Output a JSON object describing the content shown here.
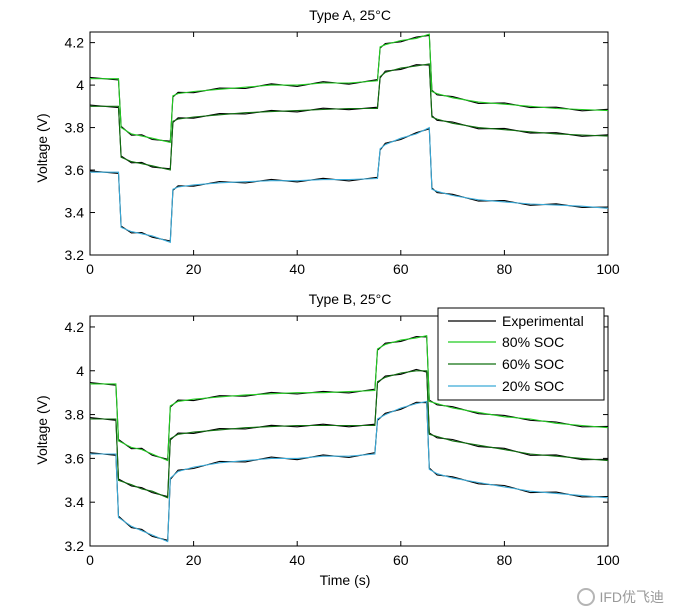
{
  "chart_data": [
    {
      "type": "line",
      "title": "Type A, 25°C",
      "xlabel": "",
      "ylabel": "Voltage (V)",
      "xlim": [
        0,
        100
      ],
      "ylim": [
        3.2,
        4.25
      ],
      "xticks": [
        "0",
        "20",
        "40",
        "60",
        "80",
        "100"
      ],
      "yticks": [
        "3.2",
        "3.4",
        "3.6",
        "3.8",
        "4",
        "4.2"
      ],
      "grid": false,
      "series": [
        {
          "name": "80% SOC",
          "color": "#22cc22",
          "x": [
            0,
            5.5,
            6,
            8,
            10,
            12,
            15.5,
            16,
            17,
            20,
            25,
            30,
            35,
            40,
            45,
            50,
            55.5,
            56,
            57,
            60,
            63,
            65.5,
            66,
            67,
            70,
            75,
            80,
            85,
            90,
            95,
            100
          ],
          "y": [
            4.03,
            4.03,
            3.8,
            3.77,
            3.76,
            3.75,
            3.73,
            3.95,
            3.96,
            3.97,
            3.98,
            3.99,
            4.0,
            4.0,
            4.01,
            4.01,
            4.02,
            4.18,
            4.19,
            4.21,
            4.22,
            4.24,
            3.97,
            3.96,
            3.94,
            3.92,
            3.91,
            3.9,
            3.89,
            3.885,
            3.88
          ]
        },
        {
          "name": "60% SOC",
          "color": "#107010",
          "x": [
            0,
            5.5,
            6,
            8,
            10,
            12,
            15.5,
            16,
            17,
            20,
            25,
            30,
            35,
            40,
            45,
            50,
            55.5,
            56,
            57,
            60,
            63,
            65.5,
            66,
            67,
            70,
            75,
            80,
            85,
            90,
            95,
            100
          ],
          "y": [
            3.9,
            3.9,
            3.66,
            3.64,
            3.63,
            3.62,
            3.6,
            3.83,
            3.84,
            3.85,
            3.86,
            3.87,
            3.875,
            3.88,
            3.885,
            3.89,
            3.89,
            4.04,
            4.06,
            4.08,
            4.09,
            4.1,
            3.85,
            3.84,
            3.82,
            3.8,
            3.79,
            3.78,
            3.77,
            3.765,
            3.76
          ]
        },
        {
          "name": "20% SOC",
          "color": "#3aaad8",
          "x": [
            0,
            5.5,
            6,
            8,
            10,
            12,
            15.5,
            16,
            17,
            20,
            25,
            30,
            35,
            40,
            45,
            50,
            55.5,
            56,
            57,
            60,
            63,
            65.5,
            66,
            67,
            70,
            75,
            80,
            85,
            90,
            95,
            100
          ],
          "y": [
            3.59,
            3.59,
            3.33,
            3.31,
            3.3,
            3.29,
            3.26,
            3.51,
            3.52,
            3.53,
            3.54,
            3.545,
            3.55,
            3.55,
            3.555,
            3.555,
            3.56,
            3.7,
            3.72,
            3.75,
            3.77,
            3.8,
            3.51,
            3.5,
            3.48,
            3.46,
            3.45,
            3.44,
            3.435,
            3.43,
            3.42
          ]
        }
      ]
    },
    {
      "type": "line",
      "title": "Type B, 25°C",
      "xlabel": "Time (s)",
      "ylabel": "Voltage (V)",
      "xlim": [
        0,
        100
      ],
      "ylim": [
        3.2,
        4.25
      ],
      "xticks": [
        "0",
        "20",
        "40",
        "60",
        "80",
        "100"
      ],
      "yticks": [
        "3.2",
        "3.4",
        "3.6",
        "3.8",
        "4",
        "4.2"
      ],
      "grid": false,
      "legend_position": "top-right",
      "legend": [
        "Experimental",
        "80% SOC",
        "60% SOC",
        "20% SOC"
      ],
      "series": [
        {
          "name": "80% SOC",
          "color": "#22cc22",
          "x": [
            0,
            5,
            5.5,
            8,
            10,
            12,
            15,
            15.5,
            17,
            20,
            25,
            30,
            35,
            40,
            45,
            50,
            55,
            55.5,
            57,
            60,
            63,
            65,
            65.5,
            67,
            70,
            75,
            80,
            85,
            90,
            95,
            100
          ],
          "y": [
            3.94,
            3.94,
            3.68,
            3.65,
            3.64,
            3.62,
            3.59,
            3.84,
            3.86,
            3.87,
            3.88,
            3.89,
            3.895,
            3.9,
            3.9,
            3.905,
            3.91,
            4.1,
            4.12,
            4.14,
            4.15,
            4.16,
            3.86,
            3.85,
            3.83,
            3.81,
            3.79,
            3.78,
            3.76,
            3.75,
            3.74
          ]
        },
        {
          "name": "60% SOC",
          "color": "#107010",
          "x": [
            0,
            5,
            5.5,
            8,
            10,
            12,
            15,
            15.5,
            17,
            20,
            25,
            30,
            35,
            40,
            45,
            50,
            55,
            55.5,
            57,
            60,
            63,
            65,
            65.5,
            67,
            70,
            75,
            80,
            85,
            90,
            95,
            100
          ],
          "y": [
            3.78,
            3.78,
            3.5,
            3.48,
            3.46,
            3.45,
            3.42,
            3.69,
            3.71,
            3.72,
            3.73,
            3.74,
            3.745,
            3.75,
            3.75,
            3.75,
            3.75,
            3.95,
            3.97,
            3.99,
            4.0,
            4.0,
            3.71,
            3.7,
            3.68,
            3.66,
            3.64,
            3.62,
            3.61,
            3.6,
            3.59
          ]
        },
        {
          "name": "20% SOC",
          "color": "#3aaad8",
          "x": [
            0,
            5,
            5.5,
            8,
            10,
            12,
            15,
            15.5,
            17,
            20,
            25,
            30,
            35,
            40,
            45,
            50,
            55,
            55.5,
            57,
            60,
            63,
            65,
            65.5,
            67,
            70,
            75,
            80,
            85,
            90,
            95,
            100
          ],
          "y": [
            3.62,
            3.62,
            3.33,
            3.29,
            3.27,
            3.25,
            3.22,
            3.51,
            3.54,
            3.56,
            3.58,
            3.59,
            3.6,
            3.6,
            3.61,
            3.61,
            3.62,
            3.78,
            3.8,
            3.83,
            3.85,
            3.86,
            3.55,
            3.53,
            3.51,
            3.49,
            3.47,
            3.45,
            3.44,
            3.43,
            3.42
          ]
        }
      ]
    }
  ],
  "legend_swatch_colors": [
    "#000000",
    "#22cc22",
    "#107010",
    "#3aaad8"
  ],
  "watermark": "IFD优飞迪"
}
